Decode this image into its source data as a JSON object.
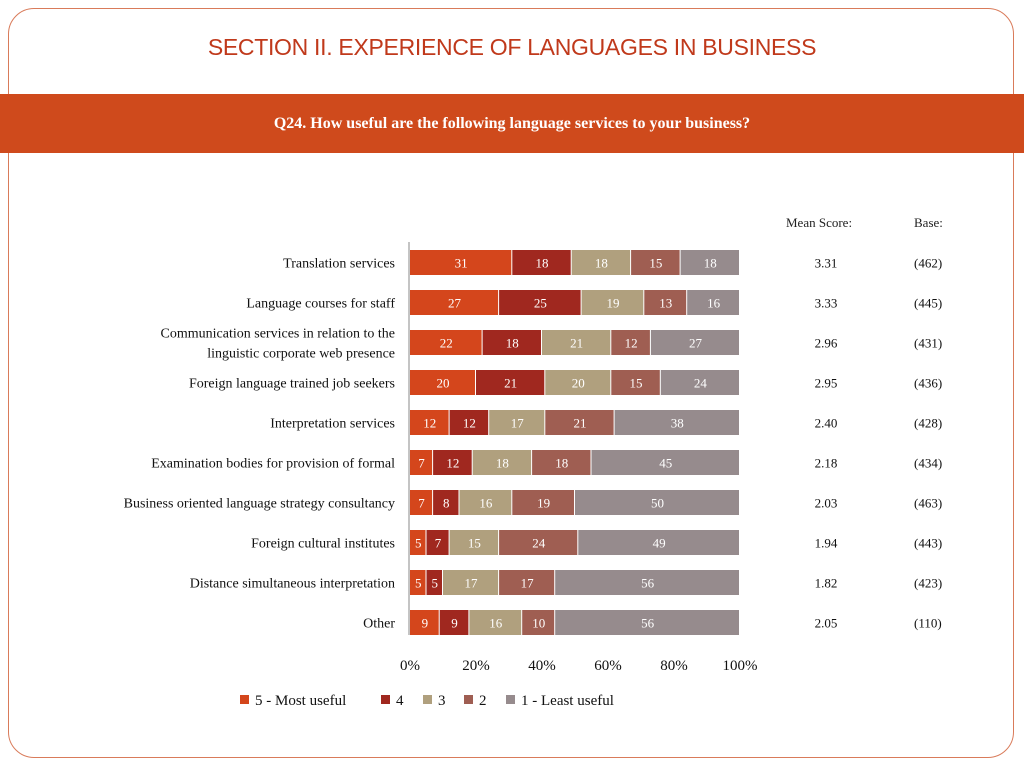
{
  "slide": {
    "title": "SECTION II. EXPERIENCE OF LANGUAGES IN BUSINESS",
    "question": "Q24. How useful are the following language services to your business?",
    "mean_header": "Mean Score:",
    "base_header": "Base:"
  },
  "colors": {
    "accent": "#cf4a1c",
    "title": "#c0391b",
    "s5": "#d4461c",
    "s4": "#a0281f",
    "s3": "#b0a07e",
    "s2": "#9f5e52",
    "s1": "#968b8d"
  },
  "chart_data": {
    "type": "bar",
    "orientation": "horizontal",
    "stacked": true,
    "categories": [
      "Translation services",
      "Language courses for staff",
      "Communication services in relation to the linguistic corporate web presence",
      "Foreign language trained job seekers",
      "Interpretation services",
      "Examination bodies for provision of formal",
      "Business oriented language strategy consultancy",
      "Foreign cultural institutes",
      "Distance simultaneous interpretation",
      "Other"
    ],
    "category_lines": [
      [
        "Translation services"
      ],
      [
        "Language courses for staff"
      ],
      [
        "Communication services in relation to the",
        "linguistic corporate web presence"
      ],
      [
        "Foreign language trained job seekers"
      ],
      [
        "Interpretation services"
      ],
      [
        "Examination bodies for provision of formal"
      ],
      [
        "Business oriented language strategy consultancy"
      ],
      [
        "Foreign cultural institutes"
      ],
      [
        "Distance simultaneous interpretation"
      ],
      [
        "Other"
      ]
    ],
    "series": [
      {
        "name": "5 - Most useful",
        "color": "#d4461c",
        "values": [
          31,
          27,
          22,
          20,
          12,
          7,
          7,
          5,
          5,
          9
        ]
      },
      {
        "name": "4",
        "color": "#a0281f",
        "values": [
          18,
          25,
          18,
          21,
          12,
          12,
          8,
          7,
          5,
          9
        ]
      },
      {
        "name": "3",
        "color": "#b0a07e",
        "values": [
          18,
          19,
          21,
          20,
          17,
          18,
          16,
          15,
          17,
          16
        ]
      },
      {
        "name": "2",
        "color": "#9f5e52",
        "values": [
          15,
          13,
          12,
          15,
          21,
          18,
          19,
          24,
          17,
          10
        ]
      },
      {
        "name": "1 - Least useful",
        "color": "#968b8d",
        "values": [
          18,
          16,
          27,
          24,
          38,
          45,
          50,
          49,
          56,
          56
        ]
      }
    ],
    "xlim": [
      0,
      100
    ],
    "x_ticks": [
      "0%",
      "20%",
      "40%",
      "60%",
      "80%",
      "100%"
    ],
    "mean_scores": [
      "3.31",
      "3.33",
      "2.96",
      "2.95",
      "2.40",
      "2.18",
      "2.03",
      "1.94",
      "1.82",
      "2.05"
    ],
    "bases": [
      "(462)",
      "(445)",
      "(431)",
      "(436)",
      "(428)",
      "(434)",
      "(463)",
      "(443)",
      "(423)",
      "(110)"
    ],
    "legend_position": "bottom"
  }
}
